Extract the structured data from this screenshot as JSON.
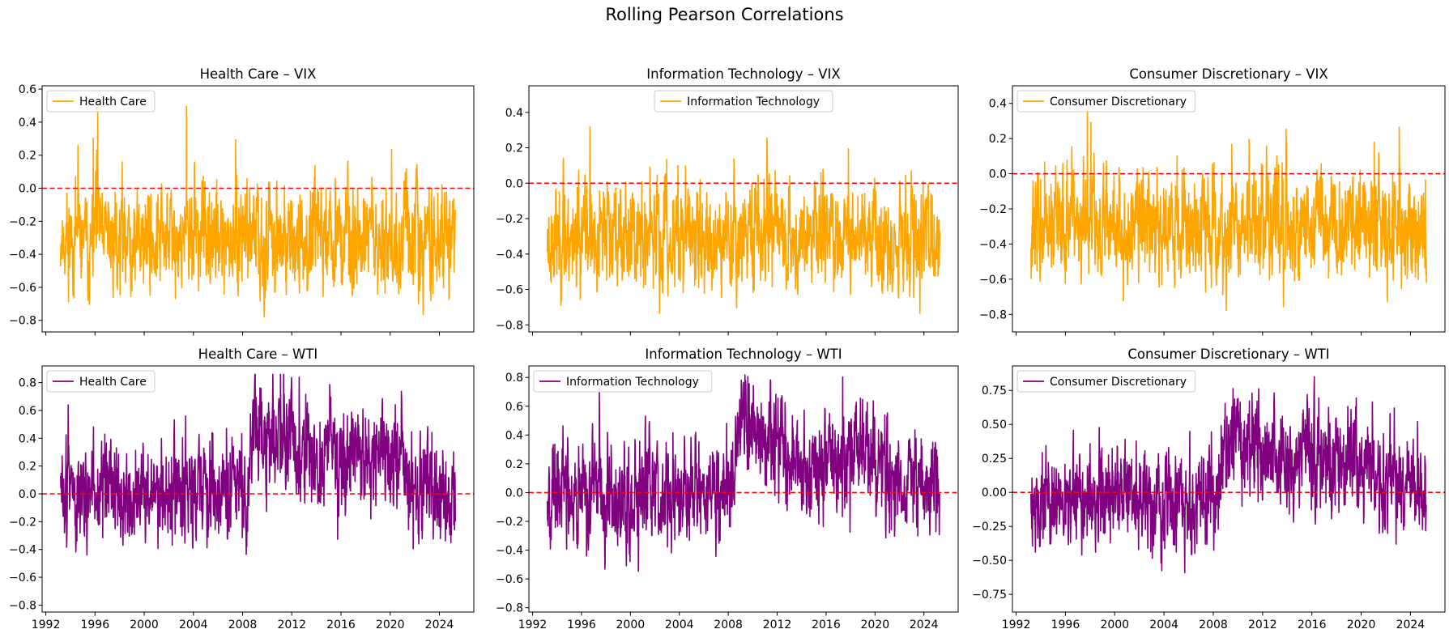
{
  "suptitle": "Rolling Pearson Correlations",
  "colors": {
    "vix": "#FFA500",
    "wti": "#800080",
    "zero_line": "#FF0000"
  },
  "chart_data": [
    {
      "type": "line",
      "title": "Health Care – VIX",
      "legend": [
        "Health Care"
      ],
      "legend_loc": "upper left",
      "series": [
        {
          "name": "Health Care",
          "color": "#FFA500"
        }
      ],
      "x_range": [
        1993.2,
        2025.3
      ],
      "xlim": [
        1991.7,
        2026.8
      ],
      "ylim": [
        -0.87,
        0.62
      ],
      "yticks": [
        -0.8,
        -0.6,
        -0.4,
        -0.2,
        0.0,
        0.2,
        0.4,
        0.6
      ],
      "ytick_labels": [
        "−0.8",
        "−0.6",
        "−0.4",
        "−0.2",
        "0.0",
        "0.2",
        "0.4",
        "0.6"
      ],
      "baseline": -0.3,
      "noise": 0.17,
      "y_min": -0.82,
      "y_max": 0.54,
      "seed": 11,
      "reference_line": 0.0,
      "show_xticklabels": false
    },
    {
      "type": "line",
      "title": "Information Technology – VIX",
      "legend": [
        "Information Technology"
      ],
      "legend_loc": "upper center",
      "series": [
        {
          "name": "Information Technology",
          "color": "#FFA500"
        }
      ],
      "x_range": [
        1993.2,
        2025.3
      ],
      "xlim": [
        1991.7,
        2026.8
      ],
      "ylim": [
        -0.84,
        0.55
      ],
      "yticks": [
        -0.8,
        -0.6,
        -0.4,
        -0.2,
        0.0,
        0.2,
        0.4
      ],
      "ytick_labels": [
        "−0.8",
        "−0.6",
        "−0.4",
        "−0.2",
        "0.0",
        "0.2",
        "0.4"
      ],
      "baseline": -0.3,
      "noise": 0.17,
      "y_min": -0.77,
      "y_max": 0.49,
      "seed": 23,
      "reference_line": 0.0,
      "show_xticklabels": false
    },
    {
      "type": "line",
      "title": "Consumer Discretionary – VIX",
      "legend": [
        "Consumer Discretionary"
      ],
      "legend_loc": "upper left",
      "series": [
        {
          "name": "Consumer Discretionary",
          "color": "#FFA500"
        }
      ],
      "x_range": [
        1993.2,
        2025.3
      ],
      "xlim": [
        1991.7,
        2026.8
      ],
      "ylim": [
        -0.9,
        0.5
      ],
      "yticks": [
        -0.8,
        -0.6,
        -0.4,
        -0.2,
        0.0,
        0.2,
        0.4
      ],
      "ytick_labels": [
        "−0.8",
        "−0.6",
        "−0.4",
        "−0.2",
        "0.0",
        "0.2",
        "0.4"
      ],
      "baseline": -0.3,
      "noise": 0.17,
      "y_min": -0.84,
      "y_max": 0.44,
      "seed": 37,
      "reference_line": 0.0,
      "show_xticklabels": false
    },
    {
      "type": "line",
      "title": "Health Care – WTI",
      "legend": [
        "Health Care"
      ],
      "legend_loc": "upper left",
      "series": [
        {
          "name": "Health Care",
          "color": "#800080"
        }
      ],
      "x_range": [
        1993.2,
        2025.3
      ],
      "xlim": [
        1991.7,
        2026.8
      ],
      "ylim": [
        -0.85,
        0.92
      ],
      "yticks": [
        -0.8,
        -0.6,
        -0.4,
        -0.2,
        0.0,
        0.2,
        0.4,
        0.6,
        0.8
      ],
      "ytick_labels": [
        "−0.8",
        "−0.6",
        "−0.4",
        "−0.2",
        "0.0",
        "0.2",
        "0.4",
        "0.6",
        "0.8"
      ],
      "regimes": [
        [
          1993.2,
          0.0
        ],
        [
          2008.4,
          0.0
        ],
        [
          2008.8,
          0.45
        ],
        [
          2014.5,
          0.25
        ],
        [
          2019.0,
          0.35
        ],
        [
          2022.0,
          0.05
        ],
        [
          2025.3,
          -0.05
        ]
      ],
      "noise": 0.2,
      "y_min": -0.77,
      "y_max": 0.86,
      "seed": 51,
      "reference_line": 0.0,
      "show_xticklabels": true
    },
    {
      "type": "line",
      "title": "Information Technology – WTI",
      "legend": [
        "Information Technology"
      ],
      "legend_loc": "upper left",
      "series": [
        {
          "name": "Information Technology",
          "color": "#800080"
        }
      ],
      "x_range": [
        1993.2,
        2025.3
      ],
      "xlim": [
        1991.7,
        2026.8
      ],
      "ylim": [
        -0.83,
        0.88
      ],
      "yticks": [
        -0.8,
        -0.6,
        -0.4,
        -0.2,
        0.0,
        0.2,
        0.4,
        0.6,
        0.8
      ],
      "ytick_labels": [
        "−0.8",
        "−0.6",
        "−0.4",
        "−0.2",
        "0.0",
        "0.2",
        "0.4",
        "0.6",
        "0.8"
      ],
      "regimes": [
        [
          1993.2,
          0.0
        ],
        [
          2008.4,
          0.0
        ],
        [
          2008.8,
          0.5
        ],
        [
          2014.5,
          0.2
        ],
        [
          2019.0,
          0.3
        ],
        [
          2022.0,
          0.05
        ],
        [
          2025.3,
          0.05
        ]
      ],
      "noise": 0.2,
      "y_min": -0.75,
      "y_max": 0.82,
      "seed": 67,
      "reference_line": 0.0,
      "show_xticklabels": true
    },
    {
      "type": "line",
      "title": "Consumer Discretionary – WTI",
      "legend": [
        "Consumer Discretionary"
      ],
      "legend_loc": "upper left",
      "series": [
        {
          "name": "Consumer Discretionary",
          "color": "#800080"
        }
      ],
      "x_range": [
        1993.2,
        2025.3
      ],
      "xlim": [
        1991.7,
        2026.8
      ],
      "ylim": [
        -0.88,
        0.93
      ],
      "yticks": [
        -0.75,
        -0.5,
        -0.25,
        0.0,
        0.25,
        0.5,
        0.75
      ],
      "ytick_labels": [
        "−0.75",
        "−0.50",
        "−0.25",
        "0.00",
        "0.25",
        "0.50",
        "0.75"
      ],
      "regimes": [
        [
          1993.2,
          -0.05
        ],
        [
          2008.4,
          -0.05
        ],
        [
          2008.8,
          0.45
        ],
        [
          2014.5,
          0.2
        ],
        [
          2019.0,
          0.3
        ],
        [
          2022.0,
          0.05
        ],
        [
          2025.3,
          0.0
        ]
      ],
      "noise": 0.2,
      "y_min": -0.8,
      "y_max": 0.85,
      "seed": 79,
      "reference_line": 0.0,
      "show_xticklabels": true
    }
  ],
  "xticks": [
    1992,
    1996,
    2000,
    2004,
    2008,
    2012,
    2016,
    2020,
    2024
  ],
  "xtick_labels": [
    "1992",
    "1996",
    "2000",
    "2004",
    "2008",
    "2012",
    "2016",
    "2020",
    "2024"
  ]
}
